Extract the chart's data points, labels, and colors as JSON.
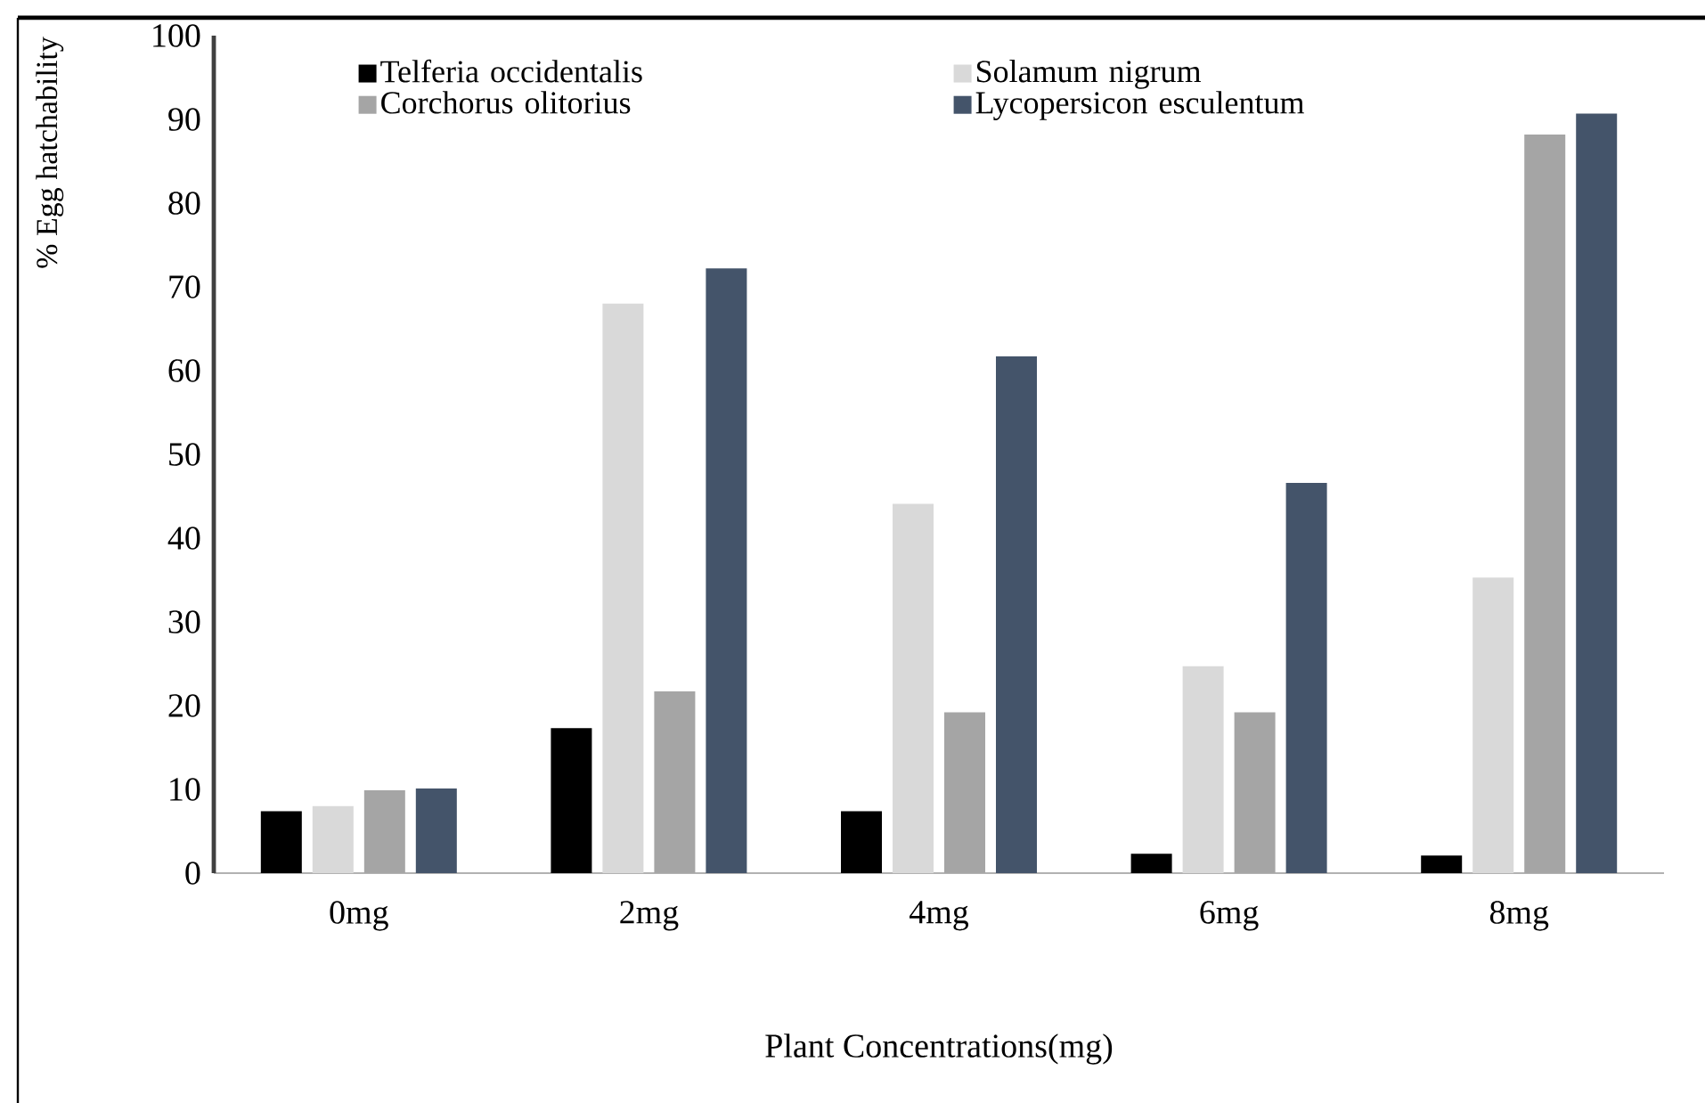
{
  "chart_data": {
    "type": "bar",
    "xlabel": "Plant Concentrations(mg)",
    "ylabel": "% Egg hatchability",
    "categories": [
      "0mg",
      "2mg",
      "4mg",
      "6mg",
      "8mg"
    ],
    "series": [
      {
        "name": "Telferia occidentalis",
        "color": "#000000",
        "values": [
          7.4,
          17.3,
          7.4,
          2.3,
          2.1
        ]
      },
      {
        "name": "Solamum nigrum",
        "color": "#d9d9d9",
        "values": [
          8.0,
          68,
          44.1,
          24.7,
          35.3
        ]
      },
      {
        "name": "Corchorus olitorius",
        "color": "#a5a5a5",
        "values": [
          9.9,
          21.7,
          19.2,
          19.2,
          88.2
        ]
      },
      {
        "name": "Lycopersicon esculentum",
        "color": "#44546a",
        "values": [
          10.1,
          72.2,
          61.7,
          46.6,
          90.7
        ]
      }
    ],
    "ylim": [
      0,
      100
    ],
    "yticks": [
      0,
      10,
      20,
      30,
      40,
      50,
      60,
      70,
      80,
      90,
      100
    ],
    "grid": false,
    "legend": "top"
  }
}
